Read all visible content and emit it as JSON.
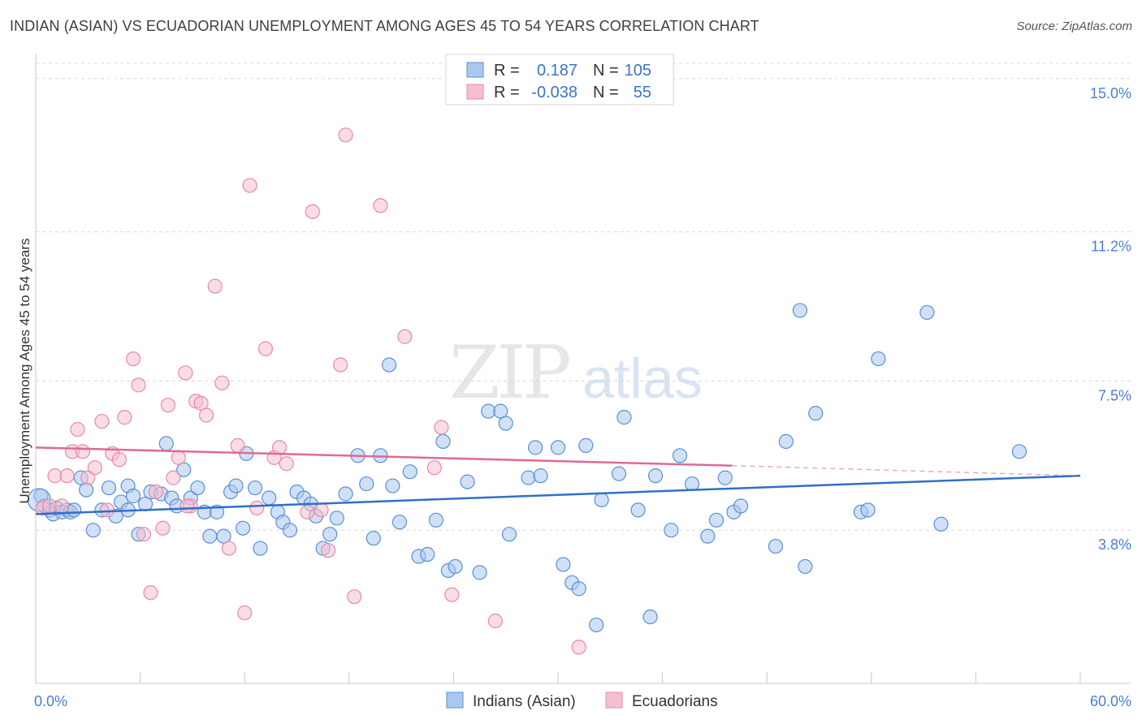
{
  "title": "INDIAN (ASIAN) VS ECUADORIAN UNEMPLOYMENT AMONG AGES 45 TO 54 YEARS CORRELATION CHART",
  "source": "Source: ZipAtlas.com",
  "watermark": {
    "zip": "ZIP",
    "atlas": "atlas"
  },
  "colors": {
    "blue_fill": "#a9c8ef",
    "blue_stroke": "#5a8fd6",
    "blue_line": "#2f6fcb",
    "pink_fill": "#f6bfd0",
    "pink_stroke": "#e58aa8",
    "pink_line": "#e06996",
    "grid": "#d8d8d8",
    "tick_text": "#4a7fcf"
  },
  "legend": {
    "r_label": "R =",
    "n_label": "N =",
    "rows": [
      {
        "series": "Indians (Asian)",
        "r": "0.187",
        "n": "105"
      },
      {
        "series": "Ecuadorians",
        "r": "-0.038",
        "n": "55"
      }
    ]
  },
  "chart_data": {
    "type": "scatter",
    "title": "INDIAN (ASIAN) VS ECUADORIAN UNEMPLOYMENT AMONG AGES 45 TO 54 YEARS CORRELATION CHART",
    "xlabel": "",
    "ylabel": "Unemployment Among Ages 45 to 54 years",
    "xlim": [
      0,
      60
    ],
    "ylim": [
      0,
      15.7
    ],
    "x_tick_labels": [
      "0.0%",
      "60.0%"
    ],
    "y_ticks": [
      3.8,
      7.5,
      11.2,
      15.0
    ],
    "y_tick_labels": [
      "3.8%",
      "7.5%",
      "11.2%",
      "15.0%"
    ],
    "legend_position": "bottom-center",
    "series": [
      {
        "name": "Indians (Asian)",
        "color": "#5a8fd6",
        "trend": {
          "x": [
            0,
            60
          ],
          "y": [
            4.2,
            5.15
          ]
        },
        "points": [
          [
            0.3,
            4.65
          ],
          [
            0.5,
            4.4
          ],
          [
            0.8,
            4.3
          ],
          [
            1.0,
            4.2
          ],
          [
            1.2,
            4.35
          ],
          [
            1.5,
            4.25
          ],
          [
            1.8,
            4.3
          ],
          [
            2.0,
            4.25
          ],
          [
            2.2,
            4.3
          ],
          [
            2.6,
            5.1
          ],
          [
            2.9,
            4.8
          ],
          [
            3.3,
            3.8
          ],
          [
            3.8,
            4.3
          ],
          [
            4.2,
            4.85
          ],
          [
            4.6,
            4.15
          ],
          [
            4.9,
            4.5
          ],
          [
            5.3,
            4.9
          ],
          [
            5.6,
            4.65
          ],
          [
            5.9,
            3.7
          ],
          [
            6.3,
            4.45
          ],
          [
            6.6,
            4.75
          ],
          [
            7.2,
            4.7
          ],
          [
            7.5,
            5.95
          ],
          [
            7.8,
            4.6
          ],
          [
            8.1,
            4.4
          ],
          [
            8.5,
            5.3
          ],
          [
            8.9,
            4.6
          ],
          [
            9.3,
            4.85
          ],
          [
            9.7,
            4.25
          ],
          [
            10.0,
            3.65
          ],
          [
            10.4,
            4.25
          ],
          [
            10.8,
            3.65
          ],
          [
            11.2,
            4.75
          ],
          [
            11.5,
            4.9
          ],
          [
            11.9,
            3.85
          ],
          [
            12.1,
            5.7
          ],
          [
            12.6,
            4.85
          ],
          [
            12.9,
            3.35
          ],
          [
            13.4,
            4.6
          ],
          [
            13.9,
            4.25
          ],
          [
            14.2,
            4.0
          ],
          [
            14.6,
            3.8
          ],
          [
            15.0,
            4.75
          ],
          [
            15.4,
            4.6
          ],
          [
            15.8,
            4.45
          ],
          [
            16.1,
            4.15
          ],
          [
            16.5,
            3.35
          ],
          [
            16.9,
            3.7
          ],
          [
            17.3,
            4.1
          ],
          [
            17.8,
            4.7
          ],
          [
            18.5,
            5.65
          ],
          [
            19.0,
            4.95
          ],
          [
            19.4,
            3.6
          ],
          [
            19.8,
            5.65
          ],
          [
            20.3,
            7.9
          ],
          [
            20.9,
            4.0
          ],
          [
            21.5,
            5.25
          ],
          [
            22.0,
            3.15
          ],
          [
            22.5,
            3.2
          ],
          [
            23.0,
            4.05
          ],
          [
            23.4,
            6.0
          ],
          [
            23.7,
            2.8
          ],
          [
            24.1,
            2.9
          ],
          [
            24.8,
            5.0
          ],
          [
            25.5,
            2.75
          ],
          [
            26.0,
            6.75
          ],
          [
            26.7,
            6.75
          ],
          [
            27.0,
            6.45
          ],
          [
            27.2,
            3.7
          ],
          [
            28.3,
            5.1
          ],
          [
            28.7,
            5.85
          ],
          [
            29.0,
            5.15
          ],
          [
            30.0,
            5.85
          ],
          [
            30.3,
            2.95
          ],
          [
            30.8,
            2.5
          ],
          [
            31.2,
            2.35
          ],
          [
            31.6,
            5.9
          ],
          [
            32.2,
            1.45
          ],
          [
            32.5,
            4.55
          ],
          [
            33.5,
            5.2
          ],
          [
            33.8,
            6.6
          ],
          [
            34.6,
            4.3
          ],
          [
            35.3,
            1.65
          ],
          [
            35.6,
            5.15
          ],
          [
            36.5,
            3.8
          ],
          [
            37.0,
            5.65
          ],
          [
            37.7,
            4.95
          ],
          [
            38.6,
            3.65
          ],
          [
            39.1,
            4.05
          ],
          [
            39.6,
            5.1
          ],
          [
            40.1,
            4.25
          ],
          [
            40.5,
            4.4
          ],
          [
            42.5,
            3.4
          ],
          [
            43.1,
            6.0
          ],
          [
            43.9,
            9.25
          ],
          [
            44.2,
            2.9
          ],
          [
            44.8,
            6.7
          ],
          [
            47.4,
            4.25
          ],
          [
            47.8,
            4.3
          ],
          [
            48.4,
            8.05
          ],
          [
            51.2,
            9.2
          ],
          [
            52.0,
            3.95
          ],
          [
            56.5,
            5.75
          ],
          [
            5.3,
            4.3
          ],
          [
            20.5,
            4.9
          ]
        ]
      },
      {
        "name": "Ecuadorians",
        "color": "#e58aa8",
        "trend": {
          "x": [
            0,
            40
          ],
          "y": [
            5.85,
            5.4
          ]
        },
        "trend_dashed": {
          "x": [
            40,
            60
          ],
          "y": [
            5.4,
            5.15
          ]
        },
        "points": [
          [
            0.4,
            4.35
          ],
          [
            0.8,
            4.4
          ],
          [
            1.1,
            5.15
          ],
          [
            1.5,
            4.4
          ],
          [
            1.8,
            5.15
          ],
          [
            2.1,
            5.75
          ],
          [
            2.4,
            6.3
          ],
          [
            2.7,
            5.75
          ],
          [
            3.0,
            5.1
          ],
          [
            3.4,
            5.35
          ],
          [
            3.8,
            6.5
          ],
          [
            4.1,
            4.3
          ],
          [
            4.4,
            5.7
          ],
          [
            4.8,
            5.55
          ],
          [
            5.1,
            6.6
          ],
          [
            5.6,
            8.05
          ],
          [
            5.9,
            7.4
          ],
          [
            6.2,
            3.7
          ],
          [
            6.6,
            2.25
          ],
          [
            6.9,
            4.75
          ],
          [
            7.3,
            3.85
          ],
          [
            7.6,
            6.9
          ],
          [
            7.9,
            5.1
          ],
          [
            8.2,
            5.6
          ],
          [
            8.6,
            7.7
          ],
          [
            8.9,
            4.4
          ],
          [
            9.2,
            7.0
          ],
          [
            9.5,
            6.95
          ],
          [
            9.8,
            6.65
          ],
          [
            10.3,
            9.85
          ],
          [
            10.7,
            7.45
          ],
          [
            11.1,
            3.35
          ],
          [
            11.6,
            5.9
          ],
          [
            12.0,
            1.75
          ],
          [
            12.3,
            12.35
          ],
          [
            12.7,
            4.35
          ],
          [
            13.2,
            8.3
          ],
          [
            13.7,
            5.6
          ],
          [
            14.0,
            5.85
          ],
          [
            14.4,
            5.45
          ],
          [
            15.6,
            4.25
          ],
          [
            15.9,
            11.7
          ],
          [
            16.4,
            4.3
          ],
          [
            16.8,
            3.3
          ],
          [
            17.5,
            7.9
          ],
          [
            17.8,
            13.6
          ],
          [
            18.3,
            2.15
          ],
          [
            19.8,
            11.85
          ],
          [
            21.2,
            8.6
          ],
          [
            22.9,
            5.35
          ],
          [
            23.3,
            6.35
          ],
          [
            23.9,
            2.2
          ],
          [
            26.4,
            1.55
          ],
          [
            31.2,
            0.9
          ],
          [
            8.7,
            4.4
          ]
        ]
      }
    ]
  }
}
